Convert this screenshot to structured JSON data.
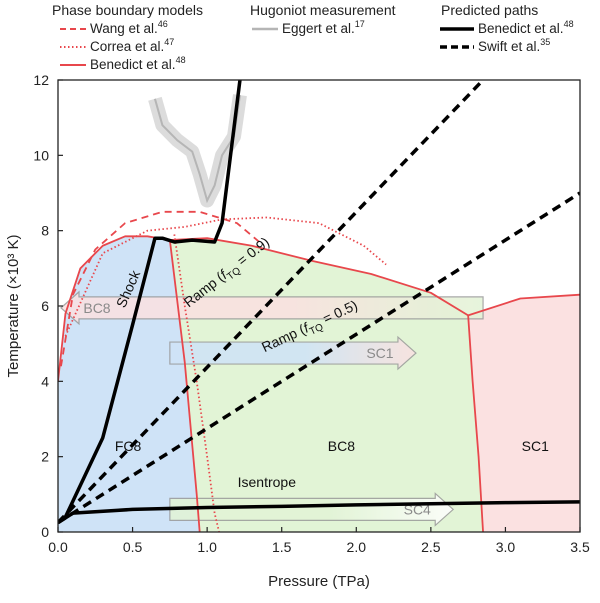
{
  "legend": {
    "groups": [
      {
        "title": "Phase boundary models",
        "items": [
          {
            "label": "Wang et al.",
            "ref": "46",
            "style": "dashed",
            "color": "#e8474c"
          },
          {
            "label": "Correa et al.",
            "ref": "47",
            "style": "dotted",
            "color": "#e8474c"
          },
          {
            "label": "Benedict et al.",
            "ref": "48",
            "style": "solid",
            "color": "#e8474c"
          }
        ]
      },
      {
        "title": "Hugoniot measurement",
        "items": [
          {
            "label": "Eggert et al.",
            "ref": "17",
            "style": "solid",
            "color": "#b5b5b5"
          }
        ]
      },
      {
        "title": "Predicted paths",
        "items": [
          {
            "label": "Benedict et al.",
            "ref": "48",
            "style": "solid-bold",
            "color": "#000000"
          },
          {
            "label": "Swift et al.",
            "ref": "35",
            "style": "dashed-bold",
            "color": "#000000"
          }
        ]
      }
    ]
  },
  "chart_data": {
    "type": "line",
    "xlabel": "Pressure (TPa)",
    "ylabel": "Temperature (×10³ K)",
    "xlim": [
      0,
      3.5
    ],
    "ylim": [
      0,
      12
    ],
    "xticks": [
      "0.0",
      "0.5",
      "1.0",
      "1.5",
      "2.0",
      "2.5",
      "3.0",
      "3.5"
    ],
    "yticks": [
      "0",
      "2",
      "4",
      "6",
      "8",
      "10",
      "12"
    ],
    "grid": false,
    "phase_regions": [
      {
        "label": "FC8",
        "color": "#cfe3f7",
        "polygon": [
          [
            0,
            4
          ],
          [
            0.05,
            5.8
          ],
          [
            0.15,
            7
          ],
          [
            0.3,
            7.6
          ],
          [
            0.45,
            7.85
          ],
          [
            0.6,
            7.85
          ],
          [
            0.75,
            7.75
          ],
          [
            0.85,
            4.5
          ],
          [
            0.93,
            1
          ],
          [
            0.95,
            0
          ],
          [
            0,
            0
          ]
        ]
      },
      {
        "label": "BC8",
        "color": "#e2f4d6",
        "polygon": [
          [
            0.75,
            7.75
          ],
          [
            1,
            7.8
          ],
          [
            1.3,
            7.6
          ],
          [
            1.7,
            7.2
          ],
          [
            2.1,
            6.85
          ],
          [
            2.5,
            6.35
          ],
          [
            2.75,
            5.75
          ],
          [
            2.78,
            4
          ],
          [
            2.82,
            2
          ],
          [
            2.85,
            0
          ],
          [
            0.95,
            0
          ],
          [
            0.93,
            1
          ],
          [
            0.85,
            4.5
          ]
        ]
      },
      {
        "label": "SC1",
        "color": "#fbe1e1",
        "polygon": [
          [
            2.75,
            5.75
          ],
          [
            3.1,
            6.2
          ],
          [
            3.5,
            6.3
          ],
          [
            3.5,
            0
          ],
          [
            2.85,
            0
          ],
          [
            2.82,
            2
          ],
          [
            2.78,
            4
          ]
        ]
      }
    ],
    "region_labels": [
      {
        "text": "FC8",
        "x": 0.47,
        "y": 2.15
      },
      {
        "text": "BC8",
        "x": 1.9,
        "y": 2.15
      },
      {
        "text": "SC1",
        "x": 3.2,
        "y": 2.15
      }
    ],
    "series": [
      {
        "name": "Wang et al.",
        "style": "dashed",
        "color": "#e8474c",
        "x": [
          0.02,
          0.1,
          0.25,
          0.45,
          0.7,
          0.95,
          1.2,
          1.35
        ],
        "y": [
          4.4,
          6.3,
          7.5,
          8.2,
          8.5,
          8.5,
          8.2,
          7.7
        ]
      },
      {
        "name": "Correa et al.",
        "style": "dotted",
        "color": "#e8474c",
        "x": [
          0.05,
          0.3,
          0.6,
          0.85,
          1.1,
          1.4,
          1.75,
          2.05,
          2.2
        ],
        "y": [
          5.2,
          7.4,
          8,
          8.1,
          8.3,
          8.35,
          8.2,
          7.6,
          7.1
        ]
      },
      {
        "name": "Correa et al.",
        "style": "dotted",
        "color": "#e8474c",
        "x": [
          0.78,
          0.85,
          0.93,
          1,
          1.05,
          1.08
        ],
        "y": [
          7.9,
          6,
          4,
          2,
          0.5,
          0
        ]
      },
      {
        "name": "Benedict et al.",
        "style": "solid",
        "color": "#e8474c",
        "x": [
          0,
          0.05,
          0.15,
          0.3,
          0.45,
          0.6,
          0.75,
          1,
          1.3,
          1.7,
          2.1,
          2.5,
          2.75,
          3.1,
          3.5
        ],
        "y": [
          4,
          5.8,
          7,
          7.6,
          7.85,
          7.85,
          7.75,
          7.8,
          7.6,
          7.2,
          6.85,
          6.35,
          5.75,
          6.2,
          6.3
        ]
      },
      {
        "name": "Benedict et al.",
        "style": "solid",
        "color": "#e8474c",
        "x": [
          0.75,
          0.85,
          0.93,
          0.95
        ],
        "y": [
          7.75,
          4.5,
          1,
          0
        ]
      },
      {
        "name": "Benedict et al.",
        "style": "solid",
        "color": "#e8474c",
        "x": [
          2.75,
          2.78,
          2.82,
          2.85
        ],
        "y": [
          5.75,
          4,
          2,
          0
        ]
      },
      {
        "name": "Eggert et al.",
        "style": "band",
        "color": "#b5b5b5",
        "x": [
          0.65,
          0.7,
          0.8,
          0.9,
          0.95,
          1.0,
          1.05,
          1.1,
          1.18,
          1.22
        ],
        "y": [
          11.5,
          10.8,
          10.4,
          10.1,
          9.5,
          8.8,
          9.2,
          10,
          10.5,
          11.6
        ]
      },
      {
        "name": "Benedict et al.",
        "style": "solid-bold",
        "color": "#000000",
        "x": [
          0,
          0.05,
          0.3,
          0.5,
          0.65,
          0.7,
          0.78,
          0.9,
          1.05,
          1.1,
          1.22
        ],
        "y": [
          0.25,
          0.4,
          2.5,
          5.5,
          7.8,
          7.8,
          7.7,
          7.75,
          7.7,
          8.2,
          12
        ]
      },
      {
        "name": "Benedict et al.",
        "style": "solid-bold",
        "color": "#000000",
        "x": [
          0,
          0.1,
          0.5,
          1,
          1.5,
          2,
          2.5,
          3,
          3.5
        ],
        "y": [
          0.25,
          0.5,
          0.6,
          0.65,
          0.68,
          0.72,
          0.75,
          0.78,
          0.8
        ]
      },
      {
        "name": "Swift et al.",
        "style": "dashed-bold",
        "color": "#000000",
        "x": [
          0,
          2.85
        ],
        "y": [
          0.25,
          12
        ]
      },
      {
        "name": "Swift et al.",
        "style": "dashed-bold",
        "color": "#000000",
        "x": [
          0,
          3.5
        ],
        "y": [
          0.25,
          9
        ]
      }
    ],
    "annotations": [
      {
        "text": "Shock",
        "x": 0.5,
        "y": 6.4,
        "rotate": -66
      },
      {
        "text": "Isentrope",
        "x": 1.4,
        "y": 1.2,
        "rotate": 0
      },
      {
        "text": "Ramp (",
        "sub_text": "TQ",
        "italic_text": "f",
        "tail_text": " = 0.9)",
        "x": 1.15,
        "y": 6.8,
        "rotate": -38
      },
      {
        "text": "Ramp (",
        "sub_text": "TQ",
        "italic_text": "f",
        "tail_text": " = 0.5)",
        "x": 1.7,
        "y": 5.35,
        "rotate": -25
      }
    ],
    "arrows": [
      {
        "label": "BC8",
        "direction": "left",
        "x_from": 2.85,
        "x_to": 0.02,
        "y": 5.95,
        "fill_from": "#e2f4d6",
        "fill_to": "#fbe1e1"
      },
      {
        "label": "SC1",
        "direction": "right",
        "x_from": 0.75,
        "x_to": 2.4,
        "y": 4.75,
        "fill_from": "#cfe3f7",
        "fill_to": "#fbe1e1"
      },
      {
        "label": "SC4",
        "direction": "right",
        "x_from": 0.75,
        "x_to": 2.65,
        "y": 0.6,
        "fill_from": "#e2f4d6",
        "fill_to": "#ffffff"
      }
    ]
  }
}
